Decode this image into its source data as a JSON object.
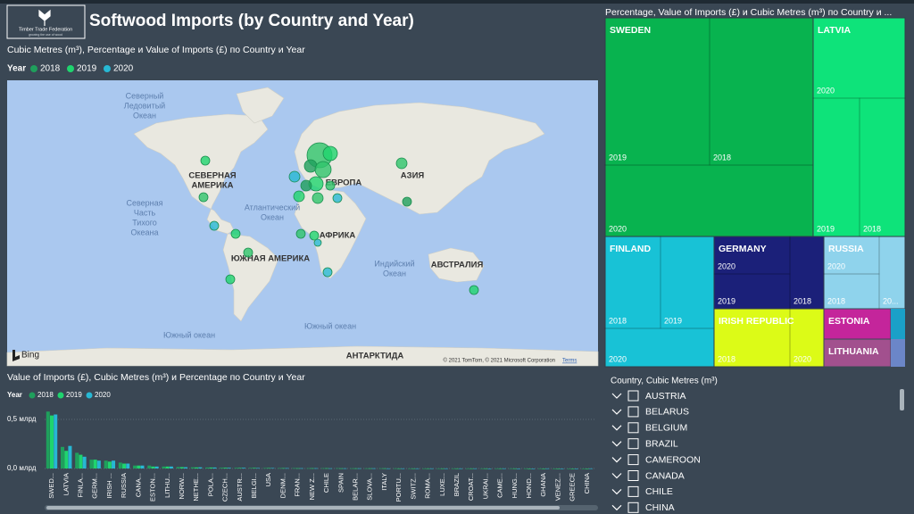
{
  "header": {
    "logo_text": "Timber Trade Federation",
    "logo_tagline": "growing the use of wood",
    "title": "Softwood Imports (by Country and Year)"
  },
  "map": {
    "title": "Cubic Metres (m³), Percentage и Value of Imports (£) по Country и Year",
    "legend": {
      "label": "Year",
      "items": [
        "2018",
        "2019",
        "2020"
      ]
    },
    "labels": [
      {
        "lines": [
          "Северный",
          "Ледовитый",
          "Океан"
        ]
      },
      {
        "lines": [
          "СЕВЕРНАЯ",
          "АМЕРИКА"
        ]
      },
      {
        "lines": [
          "Атлантический",
          "Океан"
        ]
      },
      {
        "lines": [
          "ЕВРОПА"
        ]
      },
      {
        "lines": [
          "АЗИЯ"
        ]
      },
      {
        "lines": [
          "Северная",
          "Часть",
          "Тихого",
          "Океана"
        ]
      },
      {
        "lines": [
          "АФРИКА"
        ]
      },
      {
        "lines": [
          "ЮЖНАЯ АМЕРИКА"
        ]
      },
      {
        "lines": [
          "Индийский",
          "Океан"
        ]
      },
      {
        "lines": [
          "АВСТРАЛИЯ"
        ]
      },
      {
        "lines": [
          "Южный океан"
        ]
      },
      {
        "lines": [
          "Южный океан"
        ]
      },
      {
        "lines": [
          "АНТАРКТИДА"
        ]
      }
    ],
    "attribution": {
      "bing": "Bing",
      "copyright": "© 2021 TomTom, © 2021 Microsoft Corporation",
      "terms": "Terms"
    }
  },
  "treemap": {
    "title": "Percentage, Value of Imports (£) и Cubic Metres (m³) по Country и ...",
    "tiles": [
      {
        "label": "SWEDEN",
        "color": "#08b34f",
        "years": [
          "2019",
          "2018",
          "2020"
        ]
      },
      {
        "label": "LATVIA",
        "color": "#0ee37a",
        "years": [
          "2020",
          "2019",
          "2018"
        ]
      },
      {
        "label": "FINLAND",
        "color": "#18c2d6",
        "years": [
          "2018",
          "2019",
          "2020"
        ]
      },
      {
        "label": "GERMANY",
        "color": "#1b2079",
        "years": [
          "2020",
          "2019",
          "2018"
        ]
      },
      {
        "label": "RUSSIA",
        "color": "#8fd3ec",
        "years": [
          "2020",
          "2018",
          "20..."
        ]
      },
      {
        "label": "IRISH REPUBLIC",
        "color": "#dcfb17",
        "years": [
          "2018",
          "2020"
        ]
      },
      {
        "label": "ESTONIA",
        "color": "#c4259b",
        "years": []
      },
      {
        "label": "LITHUANIA",
        "color": "#a2508e",
        "years": []
      }
    ]
  },
  "bar_chart": {
    "type": "bar",
    "title": "Value of Imports (£), Cubic Metres (m³) и Percentage по Country и Year",
    "legend_label": "Year",
    "categories": [
      "SWED...",
      "LATVIA",
      "FINLA...",
      "GERM...",
      "IRISH ...",
      "RUSSIA",
      "CANA...",
      "ESTON...",
      "LITHU...",
      "NORW...",
      "NETHE...",
      "POLA...",
      "CZECH...",
      "AUSTR...",
      "BELGI...",
      "USA",
      "DENM...",
      "FRAN...",
      "NEW Z...",
      "CHILE",
      "SPAIN",
      "BELAR...",
      "SLOVA...",
      "ITALY",
      "PORTU...",
      "SWITZ...",
      "ROMA...",
      "LUXE...",
      "BRAZIL",
      "CROAT...",
      "UKRAI...",
      "CAME...",
      "HUNG...",
      "HOND...",
      "GHANA",
      "VENEZ...",
      "GREECE",
      "CHINA"
    ],
    "series": [
      {
        "name": "2018",
        "color": "#1f9f5c",
        "values": [
          0.58,
          0.22,
          0.16,
          0.09,
          0.08,
          0.06,
          0.03,
          0.03,
          0.02,
          0.015,
          0.012,
          0.01,
          0.008,
          0.007,
          0.006,
          0.005,
          0.004,
          0.004,
          0.003,
          0.003,
          0.003,
          0.002,
          0.002,
          0.002,
          0.002,
          0.001,
          0.001,
          0.001,
          0.001,
          0.001,
          0.001,
          0.001,
          0.001,
          0.001,
          0.001,
          0,
          0,
          0
        ]
      },
      {
        "name": "2019",
        "color": "#1fd46e",
        "values": [
          0.54,
          0.18,
          0.14,
          0.09,
          0.07,
          0.05,
          0.03,
          0.02,
          0.02,
          0.014,
          0.011,
          0.01,
          0.008,
          0.006,
          0.006,
          0.005,
          0.004,
          0.003,
          0.003,
          0.003,
          0.002,
          0.002,
          0.002,
          0.002,
          0.001,
          0.001,
          0.001,
          0.001,
          0.001,
          0.001,
          0.001,
          0.001,
          0.001,
          0,
          0,
          0,
          0,
          0
        ]
      },
      {
        "name": "2020",
        "color": "#27b8d4",
        "values": [
          0.55,
          0.23,
          0.12,
          0.08,
          0.08,
          0.05,
          0.03,
          0.02,
          0.02,
          0.013,
          0.012,
          0.01,
          0.007,
          0.007,
          0.005,
          0.005,
          0.004,
          0.003,
          0.003,
          0.002,
          0.002,
          0.002,
          0.002,
          0.001,
          0.001,
          0.001,
          0.001,
          0.001,
          0.001,
          0.001,
          0,
          0.001,
          0,
          0,
          0.001,
          0,
          0,
          0.001
        ]
      }
    ],
    "ylim": [
      0,
      0.6
    ],
    "yticks": [
      {
        "value": 0,
        "label": "0,0 млрд"
      },
      {
        "value": 0.5,
        "label": "0,5 млрд"
      }
    ]
  },
  "slicer": {
    "title": "Country, Cubic Metres (m³)",
    "items": [
      "AUSTRIA",
      "BELARUS",
      "BELGIUM",
      "BRAZIL",
      "CAMEROON",
      "CANADA",
      "CHILE",
      "CHINA"
    ]
  }
}
